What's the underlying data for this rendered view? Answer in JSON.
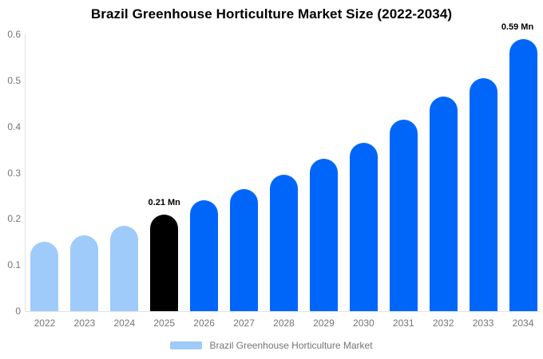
{
  "title": "Brazil Greenhouse Horticulture Market Size (2022-2034)",
  "legend": {
    "label": "Brazil Greenhouse Horticulture Market",
    "swatch_color": "#9ECBF9"
  },
  "colors": {
    "historical_bar": "#9ECBF9",
    "base_year_bar": "#000000",
    "forecast_bar": "#0066FA",
    "axis_line": "#E2E2E2",
    "tick_label": "#757575",
    "title_text": "#000000",
    "data_label_text": "#000000"
  },
  "chart_data": {
    "type": "bar",
    "title": "Brazil Greenhouse Horticulture Market Size (2022-2034)",
    "unit": "Mn",
    "categories": [
      "2022",
      "2023",
      "2024",
      "2025",
      "2026",
      "2027",
      "2028",
      "2029",
      "2030",
      "2031",
      "2032",
      "2033",
      "2034"
    ],
    "values": [
      0.15,
      0.165,
      0.185,
      0.21,
      0.24,
      0.265,
      0.295,
      0.33,
      0.365,
      0.415,
      0.465,
      0.505,
      0.59
    ],
    "bar_colors": [
      "#9ECBF9",
      "#9ECBF9",
      "#9ECBF9",
      "#000000",
      "#0066FA",
      "#0066FA",
      "#0066FA",
      "#0066FA",
      "#0066FA",
      "#0066FA",
      "#0066FA",
      "#0066FA",
      "#0066FA"
    ],
    "point_labels": [
      "",
      "",
      "",
      "0.21 Mn",
      "",
      "",
      "",
      "",
      "",
      "",
      "",
      "",
      "0.59 Mn"
    ],
    "ylim": [
      0,
      0.6
    ],
    "yticks": [
      "0",
      "0.1",
      "0.2",
      "0.3",
      "0.4",
      "0.5",
      "0.6"
    ],
    "xlabel": "",
    "ylabel": "",
    "grid": false,
    "legend_position": "bottom",
    "legend_entries": [
      "Brazil Greenhouse Horticulture Market"
    ]
  }
}
